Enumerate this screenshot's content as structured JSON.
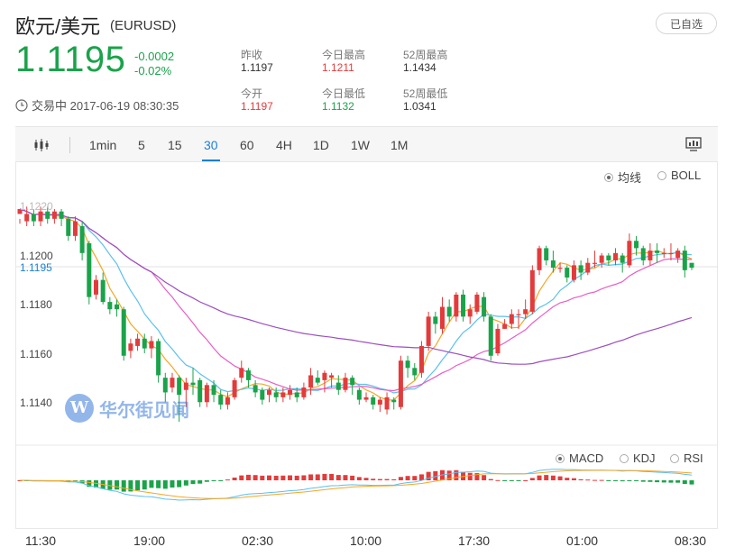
{
  "header": {
    "title": "欧元/美元",
    "code": "(EURUSD)",
    "watch_label": "已自选"
  },
  "quote": {
    "price": "1.1195",
    "change": "-0.0002",
    "change_pct": "-0.02%"
  },
  "stats": [
    {
      "label": "昨收",
      "value": "1.1197",
      "color": "#333333"
    },
    {
      "label": "今日最高",
      "value": "1.1211",
      "color": "#e33b3b"
    },
    {
      "label": "52周最高",
      "value": "1.1434",
      "color": "#333333"
    },
    {
      "label": "今开",
      "value": "1.1197",
      "color": "#e33b3b"
    },
    {
      "label": "今日最低",
      "value": "1.1132",
      "color": "#1aa34a"
    },
    {
      "label": "52周最低",
      "value": "1.0341",
      "color": "#333333"
    }
  ],
  "status": {
    "text": "交易中 2017-06-19 08:30:35",
    "icon": "clock-icon"
  },
  "toolbar": {
    "chart_type_icon": "candlestick-icon",
    "timeframes": [
      "1min",
      "5",
      "15",
      "30",
      "60",
      "4H",
      "1D",
      "1W",
      "1M"
    ],
    "active": "30",
    "screen_icon": "monitor-icon"
  },
  "indicators": {
    "main": [
      {
        "label": "均线",
        "selected": true
      },
      {
        "label": "BOLL",
        "selected": false
      }
    ],
    "sub": [
      {
        "label": "MACD",
        "selected": true
      },
      {
        "label": "KDJ",
        "selected": false
      },
      {
        "label": "RSI",
        "selected": false
      }
    ]
  },
  "watermark": {
    "logo_letter": "W",
    "text": "华尔街见闻"
  },
  "colors": {
    "up": "#e33b3b",
    "down": "#1aa34a",
    "accent": "#1a7fd6",
    "ma5": "#f5a623",
    "ma10": "#5bc0f0",
    "ma20": "#e85ec4",
    "ma60": "#9b4fbf"
  },
  "chart_data": {
    "type": "candlestick",
    "pair": "EURUSD",
    "interval": "30",
    "y_ticks": [
      "1.1200",
      "1.1180",
      "1.1160",
      "1.1140"
    ],
    "y_top_partial_label": "1.1220",
    "current_price_label": "1.1195",
    "ylim": [
      1.1132,
      1.1226
    ],
    "x_ticks": [
      "11:30",
      "19:00",
      "02:30",
      "10:00",
      "17:30",
      "01:00",
      "08:30"
    ],
    "candles": [
      [
        1.1217,
        1.1219,
        1.1215,
        1.1213
      ],
      [
        1.1214,
        1.1217,
        1.122,
        1.1212
      ],
      [
        1.1217,
        1.1214,
        1.1219,
        1.1212
      ],
      [
        1.1214,
        1.1218,
        1.122,
        1.1212
      ],
      [
        1.1218,
        1.1215,
        1.122,
        1.1213
      ],
      [
        1.1215,
        1.1218,
        1.1219,
        1.1213
      ],
      [
        1.1218,
        1.1215,
        1.1219,
        1.1212
      ],
      [
        1.1215,
        1.1208,
        1.1216,
        1.1206
      ],
      [
        1.1208,
        1.1214,
        1.1216,
        1.1206
      ],
      [
        1.1212,
        1.1201,
        1.1214,
        1.1198
      ],
      [
        1.1205,
        1.1183,
        1.1206,
        1.118
      ],
      [
        1.1184,
        1.119,
        1.1192,
        1.1182
      ],
      [
        1.119,
        1.1181,
        1.1193,
        1.118
      ],
      [
        1.1181,
        1.1178,
        1.1183,
        1.1176
      ],
      [
        1.118,
        1.1178,
        1.1182,
        1.1175
      ],
      [
        1.1178,
        1.1159,
        1.1179,
        1.1157
      ],
      [
        1.1161,
        1.1164,
        1.1166,
        1.1158
      ],
      [
        1.1163,
        1.1166,
        1.1168,
        1.1161
      ],
      [
        1.1166,
        1.1162,
        1.1168,
        1.116
      ],
      [
        1.1162,
        1.1165,
        1.1167,
        1.1158
      ],
      [
        1.1165,
        1.1151,
        1.1166,
        1.1148
      ],
      [
        1.115,
        1.1144,
        1.1152,
        1.114
      ],
      [
        1.1146,
        1.115,
        1.1152,
        1.1144
      ],
      [
        1.115,
        1.1143,
        1.1151,
        1.1132
      ],
      [
        1.1145,
        1.1148,
        1.115,
        1.1138
      ],
      [
        1.1148,
        1.1147,
        1.1154,
        1.1143
      ],
      [
        1.1149,
        1.114,
        1.115,
        1.1138
      ],
      [
        1.114,
        1.1147,
        1.1148,
        1.1138
      ],
      [
        1.1147,
        1.1143,
        1.1149,
        1.114
      ],
      [
        1.1143,
        1.1139,
        1.1145,
        1.1137
      ],
      [
        1.1139,
        1.1142,
        1.1144,
        1.1137
      ],
      [
        1.1142,
        1.1149,
        1.115,
        1.1141
      ],
      [
        1.115,
        1.1154,
        1.1157,
        1.1148
      ],
      [
        1.1153,
        1.1149,
        1.1154,
        1.1146
      ],
      [
        1.1147,
        1.1144,
        1.1149,
        1.1142
      ],
      [
        1.1145,
        1.1141,
        1.1146,
        1.1139
      ],
      [
        1.1143,
        1.1145,
        1.1146,
        1.114
      ],
      [
        1.1144,
        1.1142,
        1.1146,
        1.114
      ],
      [
        1.1142,
        1.1144,
        1.1146,
        1.114
      ],
      [
        1.1143,
        1.1145,
        1.1147,
        1.1141
      ],
      [
        1.1144,
        1.1142,
        1.1146,
        1.114
      ],
      [
        1.1142,
        1.1146,
        1.1148,
        1.1141
      ],
      [
        1.1146,
        1.1151,
        1.1154,
        1.1143
      ],
      [
        1.115,
        1.1148,
        1.1153,
        1.1147
      ],
      [
        1.1149,
        1.1152,
        1.1153,
        1.1144
      ],
      [
        1.115,
        1.1151,
        1.1152,
        1.1146
      ],
      [
        1.1148,
        1.1145,
        1.1151,
        1.1143
      ],
      [
        1.1145,
        1.115,
        1.1152,
        1.1144
      ],
      [
        1.115,
        1.1147,
        1.1151,
        1.1143
      ],
      [
        1.1145,
        1.1141,
        1.1146,
        1.1139
      ],
      [
        1.1141,
        1.1142,
        1.1144,
        1.114
      ],
      [
        1.1142,
        1.1139,
        1.1143,
        1.1137
      ],
      [
        1.1139,
        1.1141,
        1.1142,
        1.1136
      ],
      [
        1.1137,
        1.1142,
        1.1144,
        1.1135
      ],
      [
        1.1141,
        1.114,
        1.1142,
        1.1137
      ],
      [
        1.1138,
        1.1157,
        1.1159,
        1.1137
      ],
      [
        1.1157,
        1.1154,
        1.1159,
        1.115
      ],
      [
        1.1154,
        1.1151,
        1.1156,
        1.1149
      ],
      [
        1.1152,
        1.1163,
        1.1165,
        1.115
      ],
      [
        1.1163,
        1.1175,
        1.1177,
        1.1161
      ],
      [
        1.1175,
        1.1172,
        1.1177,
        1.1168
      ],
      [
        1.117,
        1.1179,
        1.1183,
        1.1168
      ],
      [
        1.1179,
        1.1175,
        1.1182,
        1.1173
      ],
      [
        1.1175,
        1.1184,
        1.1185,
        1.1173
      ],
      [
        1.1184,
        1.1175,
        1.1186,
        1.1173
      ],
      [
        1.1175,
        1.1178,
        1.118,
        1.1172
      ],
      [
        1.1177,
        1.1184,
        1.1185,
        1.1176
      ],
      [
        1.1183,
        1.1175,
        1.1185,
        1.1173
      ],
      [
        1.1175,
        1.1159,
        1.1176,
        1.1157
      ],
      [
        1.116,
        1.117,
        1.1172,
        1.1159
      ],
      [
        1.117,
        1.1172,
        1.1174,
        1.117
      ],
      [
        1.1172,
        1.1176,
        1.1178,
        1.117
      ],
      [
        1.1176,
        1.1176,
        1.1178,
        1.117
      ],
      [
        1.1176,
        1.1178,
        1.1182,
        1.1174
      ],
      [
        1.1177,
        1.1194,
        1.1196,
        1.1176
      ],
      [
        1.1194,
        1.1203,
        1.1204,
        1.1192
      ],
      [
        1.1203,
        1.1198,
        1.1204,
        1.1196
      ],
      [
        1.1198,
        1.1195,
        1.1202,
        1.1193
      ],
      [
        1.1195,
        1.1195,
        1.1197,
        1.1193
      ],
      [
        1.1195,
        1.1191,
        1.1196,
        1.1189
      ],
      [
        1.119,
        1.1196,
        1.1198,
        1.1189
      ],
      [
        1.1196,
        1.1193,
        1.1198,
        1.119
      ],
      [
        1.1193,
        1.1197,
        1.1199,
        1.1192
      ],
      [
        1.1197,
        1.1197,
        1.1202,
        1.1195
      ],
      [
        1.1197,
        1.12,
        1.1201,
        1.1195
      ],
      [
        1.12,
        1.1198,
        1.1201,
        1.1196
      ],
      [
        1.1198,
        1.1201,
        1.1203,
        1.1196
      ],
      [
        1.12,
        1.1197,
        1.1201,
        1.1193
      ],
      [
        1.1196,
        1.1206,
        1.1209,
        1.1195
      ],
      [
        1.1206,
        1.1203,
        1.1208,
        1.12
      ],
      [
        1.1203,
        1.1198,
        1.1204,
        1.1196
      ],
      [
        1.1198,
        1.1202,
        1.1205,
        1.1196
      ],
      [
        1.1202,
        1.1201,
        1.1205,
        1.1197
      ],
      [
        1.1201,
        1.1201,
        1.1203,
        1.1199
      ],
      [
        1.1201,
        1.1201,
        1.1205,
        1.1198
      ],
      [
        1.1199,
        1.1202,
        1.1203,
        1.1197
      ],
      [
        1.1202,
        1.1194,
        1.1204,
        1.1191
      ],
      [
        1.1197,
        1.1195,
        1.1197,
        1.1194
      ]
    ],
    "ma": [
      {
        "name": "MA5",
        "color": "#f5a623",
        "period": 5
      },
      {
        "name": "MA10",
        "color": "#5bc0f0",
        "period": 10
      },
      {
        "name": "MA20",
        "color": "#e85ec4",
        "period": 20
      },
      {
        "name": "MA60",
        "color": "#9b4fbf",
        "period": 60
      }
    ],
    "macd_panel": {
      "indicator": "MACD"
    }
  }
}
